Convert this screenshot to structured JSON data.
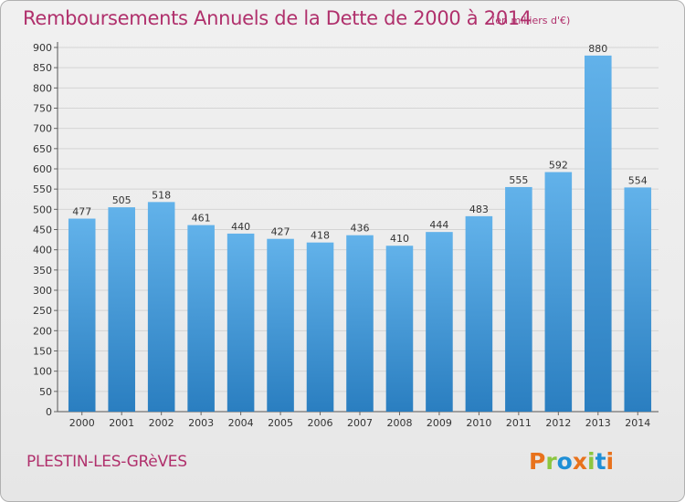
{
  "header": {
    "title": "Remboursements Annuels de la Dette de 2000 à 2014",
    "units": "(en milliers d'€)"
  },
  "footer": {
    "place": "PLESTIN-LES-GRèVES",
    "logo": "Proxiti"
  },
  "colors": {
    "accent": "#b0306c",
    "bar_light": "#5faee6",
    "bar_dark": "#2a7ec0",
    "logo_letters": [
      "#e8721c",
      "#8cc63f",
      "#1f8fd6",
      "#e8721c",
      "#8cc63f",
      "#1f8fd6",
      "#e8721c"
    ]
  },
  "chart_data": {
    "type": "bar",
    "title": "Remboursements Annuels de la Dette de 2000 à 2014",
    "subtitle": "(en milliers d'€)",
    "xlabel": "",
    "ylabel": "",
    "categories": [
      "2000",
      "2001",
      "2002",
      "2003",
      "2004",
      "2005",
      "2006",
      "2007",
      "2008",
      "2009",
      "2010",
      "2011",
      "2012",
      "2013",
      "2014"
    ],
    "values": [
      477,
      505,
      518,
      461,
      440,
      427,
      418,
      436,
      410,
      444,
      483,
      555,
      592,
      880,
      554
    ],
    "ylim": [
      0,
      900
    ],
    "yticks": [
      0,
      50,
      100,
      150,
      200,
      250,
      300,
      350,
      400,
      450,
      500,
      550,
      600,
      650,
      700,
      750,
      800,
      850,
      900
    ],
    "grid": true,
    "legend": "none"
  }
}
